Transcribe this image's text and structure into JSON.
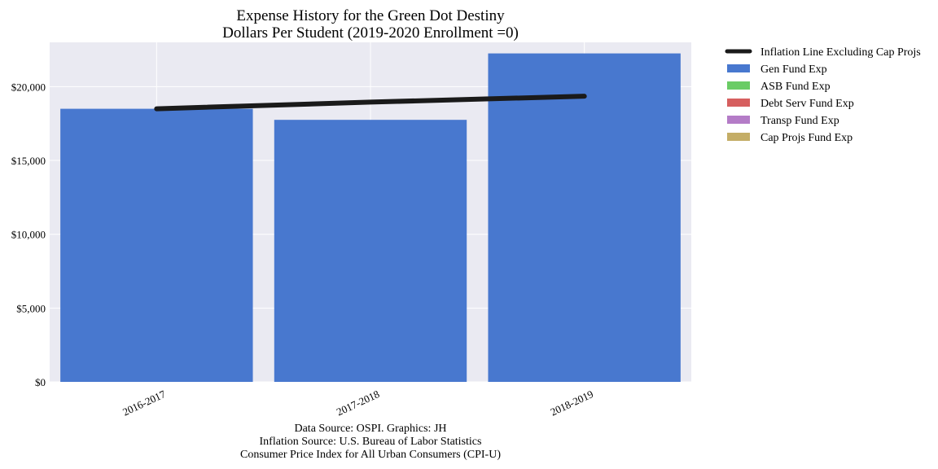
{
  "chart_data": {
    "type": "bar",
    "title": "Expense History for the Green Dot Destiny",
    "subtitle": "Dollars Per Student (2019-2020 Enrollment =0)",
    "xlabel": "",
    "ylabel": "",
    "categories": [
      "2016-2017",
      "2017-2018",
      "2018-2019"
    ],
    "ylim": [
      0,
      23000
    ],
    "yticks": [
      0,
      5000,
      10000,
      15000,
      20000
    ],
    "ytick_labels": [
      "$0",
      "$5,000",
      "$10,000",
      "$15,000",
      "$20,000"
    ],
    "grid": true,
    "legend_position": "outside-top-right",
    "series": [
      {
        "name": "Gen Fund Exp",
        "type": "bar",
        "color": "#4878cf",
        "values": [
          18500,
          17750,
          22250
        ]
      },
      {
        "name": "ASB Fund Exp",
        "type": "bar",
        "color": "#6acc65",
        "values": [
          0,
          0,
          0
        ]
      },
      {
        "name": "Debt Serv Fund Exp",
        "type": "bar",
        "color": "#d65f5f",
        "values": [
          0,
          0,
          0
        ]
      },
      {
        "name": "Transp Fund Exp",
        "type": "bar",
        "color": "#b47cc7",
        "values": [
          0,
          0,
          0
        ]
      },
      {
        "name": "Cap Projs Fund Exp",
        "type": "bar",
        "color": "#c4ad66",
        "values": [
          0,
          0,
          0
        ]
      },
      {
        "name": "Inflation Line Excluding Cap Projs",
        "type": "line",
        "color": "#1a1a1a",
        "values": [
          18500,
          18950,
          19350
        ]
      }
    ],
    "legend_order": [
      "Inflation Line Excluding Cap Projs",
      "Gen Fund Exp",
      "ASB Fund Exp",
      "Debt Serv Fund Exp",
      "Transp Fund Exp",
      "Cap Projs Fund Exp"
    ],
    "source_lines": [
      "Data Source: OSPI. Graphics: JH",
      "Inflation Source: U.S. Bureau of Labor Statistics",
      "Consumer Price Index for All Urban Consumers (CPI-U)"
    ],
    "colors": {
      "plot_background": "#eaeaf2",
      "grid": "#ffffff"
    }
  }
}
